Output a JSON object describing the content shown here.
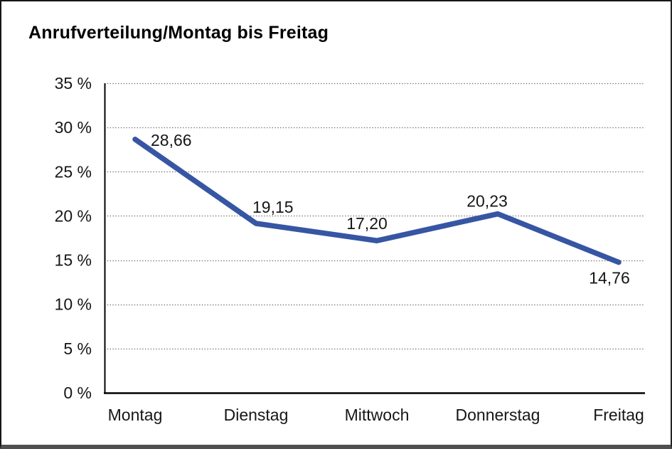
{
  "page": {
    "background_color": "#ffffff",
    "frame_border_color": "#161616"
  },
  "chart_data": {
    "type": "line",
    "title": "Anrufverteilung/Montag bis Freitag",
    "categories": [
      "Montag",
      "Dienstag",
      "Mittwoch",
      "Donnerstag",
      "Freitag"
    ],
    "series": [
      {
        "name": "Anrufverteilung",
        "color": "#3656a4",
        "values": [
          28.66,
          19.15,
          17.2,
          20.23,
          14.76
        ],
        "point_labels": [
          "28,66",
          "19,15",
          "17,20",
          "20,23",
          "14,76"
        ]
      }
    ],
    "xlabel": "",
    "ylabel": "",
    "ylim": [
      0,
      35
    ],
    "y_tick_step": 5,
    "y_tick_labels": [
      "0 %",
      "5 %",
      "10 %",
      "15 %",
      "20 %",
      "25 %",
      "30 %",
      "35 %"
    ],
    "grid": "horizontal-dotted",
    "grid_color": "#6e6e6e",
    "axis_color": "#000000",
    "legend": "none"
  }
}
